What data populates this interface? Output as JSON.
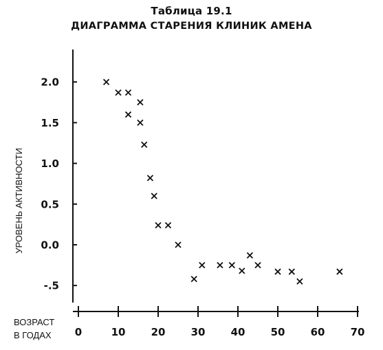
{
  "chart_data": {
    "type": "scatter",
    "title": "Таблица 19.1",
    "subtitle": "ДИАГРАММА СТАРЕНИЯ КЛИНИК АМЕНА",
    "ylabel": "УРОВЕНЬ АКТИВНОСТИ",
    "xlabel_line1": "ВОЗРАСТ",
    "xlabel_line2": "В ГОДАХ",
    "marker": "x",
    "marker_symbol": "×",
    "xlim": [
      0,
      70
    ],
    "ylim": [
      -0.6,
      2.2
    ],
    "x_ticks": [
      0,
      10,
      20,
      30,
      40,
      50,
      60,
      70
    ],
    "x_tick_labels": [
      "0",
      "10",
      "20",
      "30",
      "40",
      "50",
      "60",
      "70"
    ],
    "y_ticks": [
      2.0,
      1.5,
      1.0,
      0.5,
      0.0,
      -0.5
    ],
    "y_tick_labels": [
      "2.0",
      "1.5",
      "1.0",
      "0.5",
      "0.0",
      "-.5"
    ],
    "grid": false,
    "points": [
      {
        "x": 7,
        "y": 2.0
      },
      {
        "x": 10,
        "y": 1.87
      },
      {
        "x": 12.5,
        "y": 1.87
      },
      {
        "x": 12.5,
        "y": 1.6
      },
      {
        "x": 15.5,
        "y": 1.75
      },
      {
        "x": 15.5,
        "y": 1.5
      },
      {
        "x": 16.5,
        "y": 1.23
      },
      {
        "x": 18,
        "y": 0.82
      },
      {
        "x": 19,
        "y": 0.6
      },
      {
        "x": 20,
        "y": 0.24
      },
      {
        "x": 22.5,
        "y": 0.24
      },
      {
        "x": 25,
        "y": 0.0
      },
      {
        "x": 29,
        "y": -0.42
      },
      {
        "x": 31,
        "y": -0.25
      },
      {
        "x": 35.5,
        "y": -0.25
      },
      {
        "x": 38.5,
        "y": -0.25
      },
      {
        "x": 41,
        "y": -0.32
      },
      {
        "x": 43,
        "y": -0.13
      },
      {
        "x": 45,
        "y": -0.25
      },
      {
        "x": 50,
        "y": -0.33
      },
      {
        "x": 53.5,
        "y": -0.33
      },
      {
        "x": 55.5,
        "y": -0.45
      },
      {
        "x": 65.5,
        "y": -0.33
      }
    ]
  }
}
